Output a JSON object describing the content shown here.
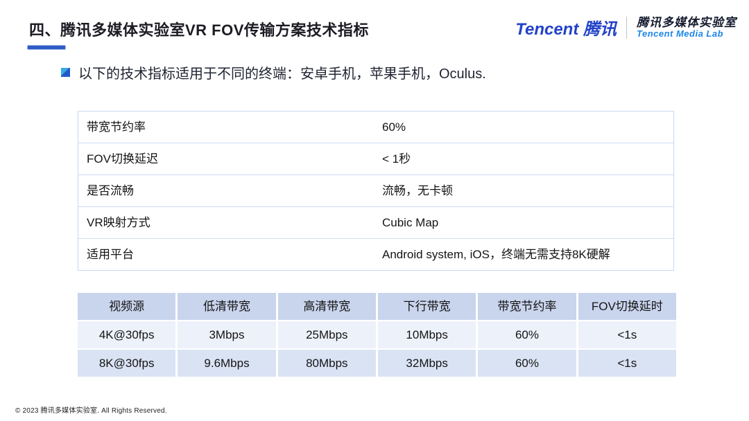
{
  "header": {
    "title": "四、腾讯多媒体实验室VR FOV传输方案技术指标",
    "logo": {
      "brand": "Tencent 腾讯",
      "lab_cn": "腾讯多媒体实验室",
      "lab_en": "Tencent Media Lab"
    }
  },
  "bullet": {
    "text": "以下的技术指标适用于不同的终端：安卓手机，苹果手机，Oculus."
  },
  "spec_table": {
    "rows": [
      {
        "label": "带宽节约率",
        "value": "60%"
      },
      {
        "label": "FOV切换延迟",
        "value": "< 1秒"
      },
      {
        "label": "是否流畅",
        "value": "流畅，无卡顿"
      },
      {
        "label": "VR映射方式",
        "value": "Cubic Map"
      },
      {
        "label": "适用平台",
        "value": "Android system, iOS，终端无需支持8K硬解"
      }
    ]
  },
  "bandwidth_table": {
    "headers": [
      "视频源",
      "低清带宽",
      "高清带宽",
      "下行带宽",
      "带宽节约率",
      "FOV切换延时"
    ],
    "rows": [
      [
        "4K@30fps",
        "3Mbps",
        "25Mbps",
        "10Mbps",
        "60%",
        "<1s"
      ],
      [
        "8K@30fps",
        "9.6Mbps",
        "80Mbps",
        "32Mbps",
        "60%",
        "<1s"
      ]
    ]
  },
  "footer": {
    "copyright": "© 2023 腾讯多媒体实验室. All Rights Reserved."
  },
  "colors": {
    "accent_blue": "#2e5bc6",
    "logo_blue": "#2342c8",
    "lab_en_blue": "#1a86e8",
    "table_border": "#c7d7f2",
    "bw_header_bg": "#c9d4ed",
    "bw_row1_bg": "#edf1fa",
    "bw_row2_bg": "#dae3f4"
  }
}
